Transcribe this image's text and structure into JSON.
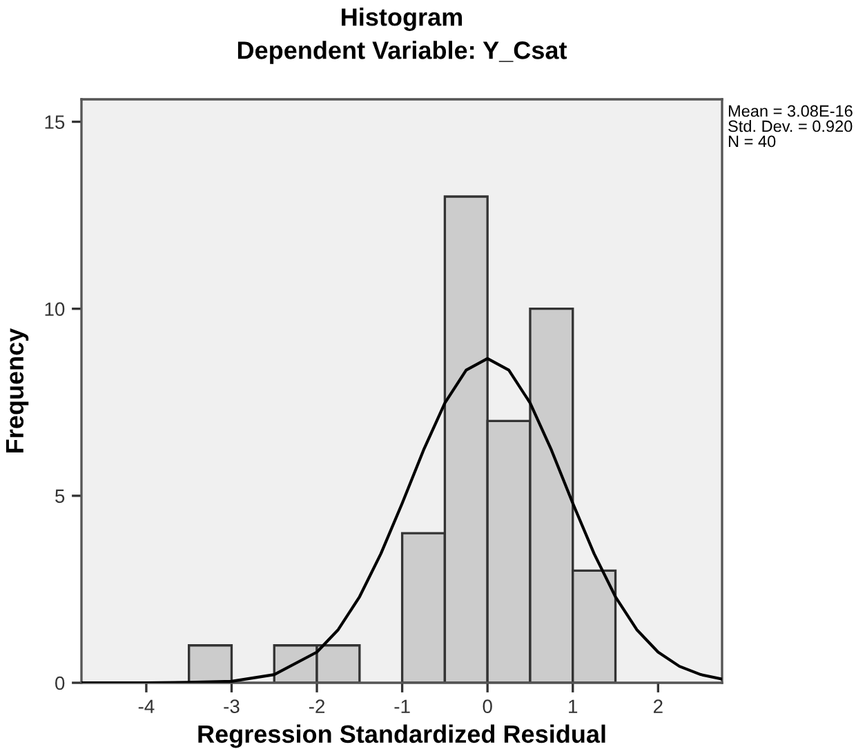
{
  "chart_data": {
    "type": "histogram",
    "title": "Histogram",
    "subtitle": "Dependent Variable: Y_Csat",
    "xlabel": "Regression Standardized Residual",
    "ylabel": "Frequency",
    "bins": [
      -3.5,
      -3,
      -2.5,
      -2,
      -1.5,
      -1,
      -0.5,
      0,
      0.5,
      1,
      1.5
    ],
    "values": [
      1,
      0,
      1,
      1,
      0,
      4,
      13,
      7,
      10,
      3
    ],
    "color": "#cccccc",
    "series": [
      {
        "type": "line",
        "color": "#000000",
        "x": [
          -4.75,
          -4,
          -3.5,
          -3,
          -2.5,
          -2,
          -1.75,
          -1.5,
          -1.25,
          -1,
          -0.75,
          -0.5,
          -0.25,
          0,
          0.25,
          0.5,
          0.75,
          1,
          1.25,
          1.5,
          1.75,
          2,
          2.25,
          2.5,
          2.75
        ],
        "values": [
          0,
          0,
          0.01,
          0.04,
          0.22,
          0.82,
          1.42,
          2.3,
          3.45,
          4.8,
          6.22,
          7.48,
          8.36,
          8.67,
          8.36,
          7.48,
          6.22,
          4.8,
          3.45,
          2.3,
          1.42,
          0.82,
          0.44,
          0.22,
          0.1
        ]
      }
    ],
    "xlim": [
      -4.76,
      2.75
    ],
    "xticks": [
      -4,
      -3,
      -2,
      -1,
      0,
      1,
      2
    ],
    "ylim": [
      0,
      15.6
    ],
    "yticks": [
      0,
      5,
      10,
      15
    ],
    "grid": false,
    "legend": false,
    "annotations": [
      "Mean = 3.08E-16",
      "Std. Dev. = 0.920",
      "N = 40"
    ]
  }
}
